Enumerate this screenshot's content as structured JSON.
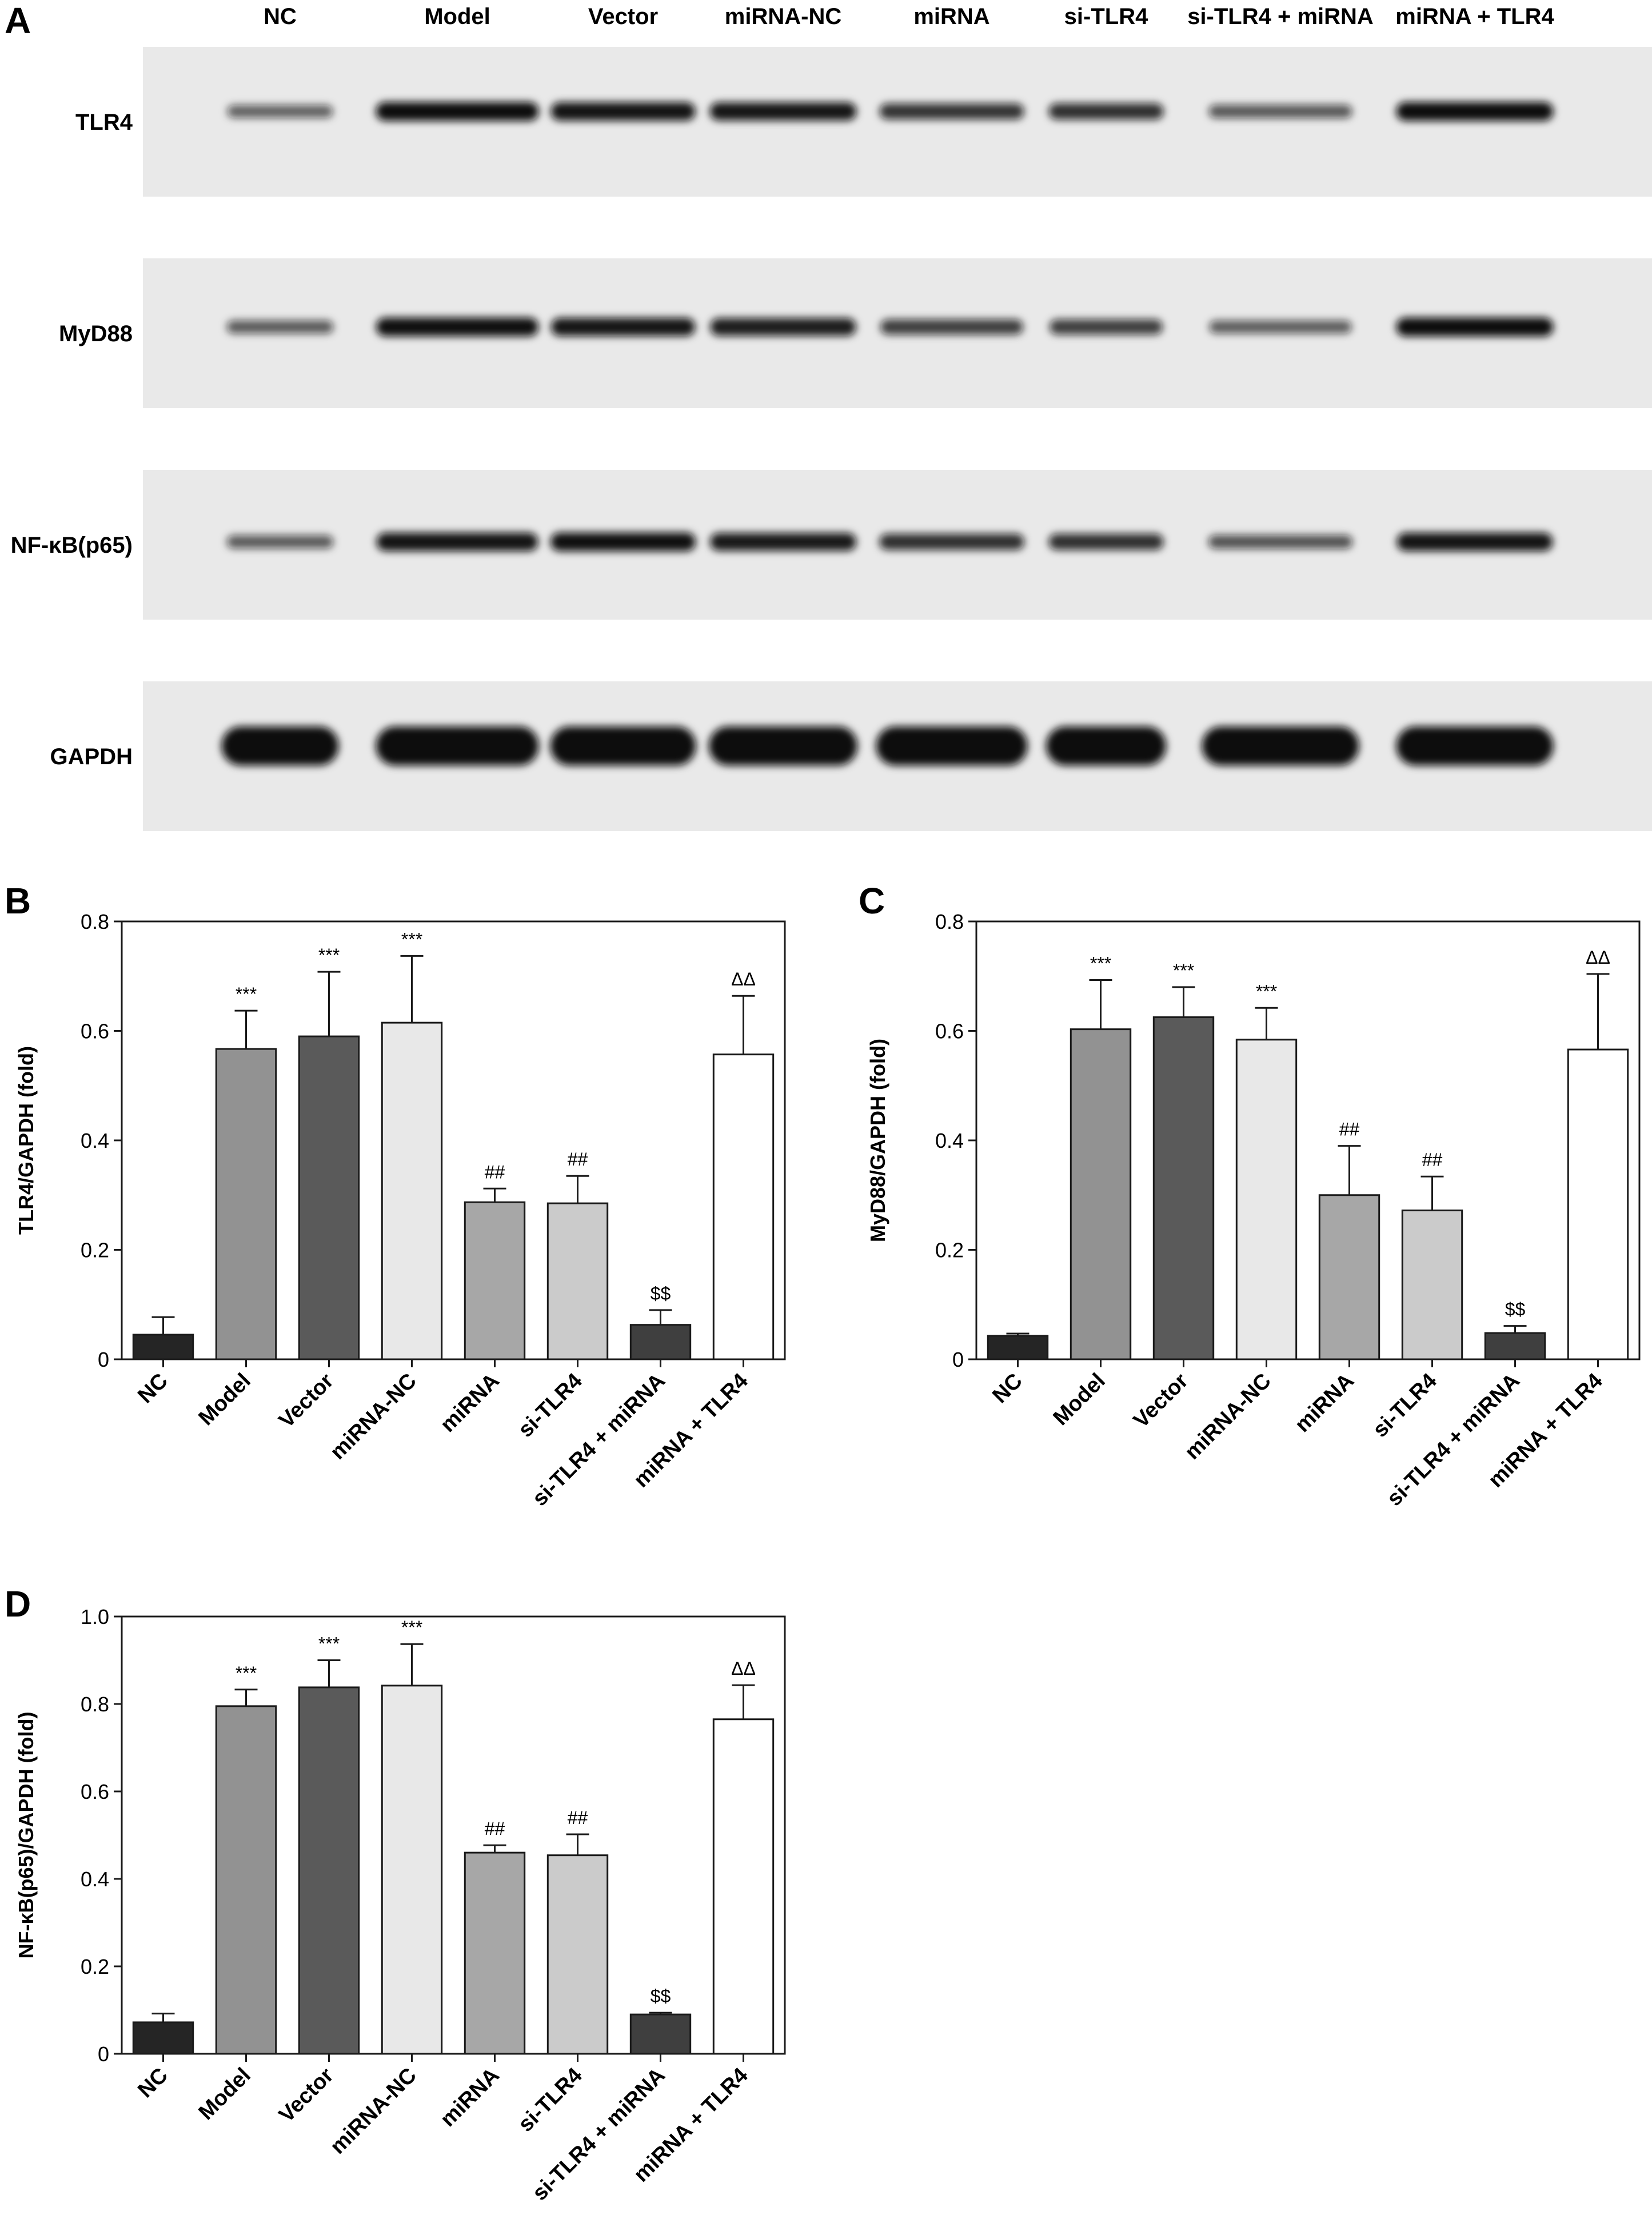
{
  "figure": {
    "panel_labels": [
      "A",
      "B",
      "C",
      "D"
    ]
  },
  "blot": {
    "lanes": [
      "NC",
      "Model",
      "Vector",
      "miRNA-NC",
      "miRNA",
      "si-TLR4",
      "si-TLR4 + miRNA",
      "miRNA + TLR4"
    ],
    "rows": [
      {
        "protein": "TLR4",
        "band_intensity": [
          0.35,
          1.0,
          0.95,
          0.92,
          0.7,
          0.72,
          0.42,
          1.0
        ]
      },
      {
        "protein": "MyD88",
        "band_intensity": [
          0.4,
          0.98,
          0.93,
          0.88,
          0.62,
          0.62,
          0.38,
          1.0
        ]
      },
      {
        "protein": "NF-κB(p65)",
        "band_intensity": [
          0.4,
          0.95,
          0.98,
          0.9,
          0.72,
          0.72,
          0.45,
          0.95
        ]
      },
      {
        "protein": "GAPDH",
        "band_intensity": [
          1.0,
          1.0,
          1.0,
          1.0,
          1.0,
          1.0,
          1.0,
          1.0
        ]
      }
    ]
  },
  "chart_data": [
    {
      "panel": "B",
      "type": "bar",
      "categories": [
        "NC",
        "Model",
        "Vector",
        "miRNA-NC",
        "miRNA",
        "si-TLR4",
        "si-TLR4 + miRNA",
        "miRNA + TLR4"
      ],
      "values": [
        0.045,
        0.567,
        0.59,
        0.615,
        0.287,
        0.285,
        0.063,
        0.557
      ],
      "errors": [
        0.032,
        0.07,
        0.118,
        0.122,
        0.025,
        0.05,
        0.027,
        0.107
      ],
      "significance": [
        "",
        "***",
        "***",
        "***",
        "##",
        "##",
        "$$",
        "ΔΔ"
      ],
      "ylabel": "TLR4/GAPDH (fold)",
      "ylim": [
        0,
        0.8
      ],
      "yticks": [
        0,
        0.2,
        0.4,
        0.6,
        0.8
      ],
      "ytick_labels": [
        "0",
        "0.2",
        "0.4",
        "0.6",
        "0.8"
      ]
    },
    {
      "panel": "C",
      "type": "bar",
      "categories": [
        "NC",
        "Model",
        "Vector",
        "miRNA-NC",
        "miRNA",
        "si-TLR4",
        "si-TLR4 + miRNA",
        "miRNA + TLR4"
      ],
      "values": [
        0.043,
        0.603,
        0.625,
        0.584,
        0.3,
        0.272,
        0.048,
        0.566
      ],
      "errors": [
        0.004,
        0.09,
        0.055,
        0.058,
        0.09,
        0.062,
        0.013,
        0.138
      ],
      "significance": [
        "",
        "***",
        "***",
        "***",
        "##",
        "##",
        "$$",
        "ΔΔ"
      ],
      "ylabel": "MyD88/GAPDH (fold)",
      "ylim": [
        0,
        0.8
      ],
      "yticks": [
        0,
        0.2,
        0.4,
        0.6,
        0.8
      ],
      "ytick_labels": [
        "0",
        "0.2",
        "0.4",
        "0.6",
        "0.8"
      ]
    },
    {
      "panel": "D",
      "type": "bar",
      "categories": [
        "NC",
        "Model",
        "Vector",
        "miRNA-NC",
        "miRNA",
        "si-TLR4",
        "si-TLR4 + miRNA",
        "miRNA + TLR4"
      ],
      "values": [
        0.072,
        0.795,
        0.838,
        0.842,
        0.46,
        0.454,
        0.09,
        0.765
      ],
      "errors": [
        0.02,
        0.038,
        0.062,
        0.095,
        0.017,
        0.048,
        0.004,
        0.078
      ],
      "significance": [
        "",
        "***",
        "***",
        "***",
        "##",
        "##",
        "$$",
        "ΔΔ"
      ],
      "ylabel": "NF-κB(p65)/GAPDH (fold)",
      "ylim": [
        0,
        1.0
      ],
      "yticks": [
        0,
        0.2,
        0.4,
        0.6,
        0.8,
        1.0
      ],
      "ytick_labels": [
        "0",
        "0.2",
        "0.4",
        "0.6",
        "0.8",
        "1.0"
      ]
    }
  ],
  "colors": {
    "bar_fills": [
      "#252525",
      "#929292",
      "#5a5a5a",
      "#e8e8e8",
      "#a7a7a7",
      "#cbcbcb",
      "#3f3f3f",
      "#ffffff"
    ],
    "blot_background": "#e9e9e9",
    "band": "#111111",
    "axis": "#1a1a1a"
  }
}
